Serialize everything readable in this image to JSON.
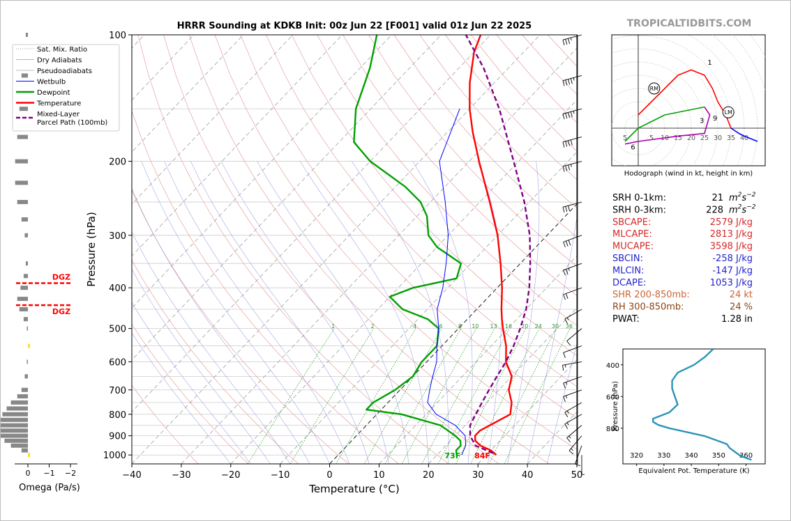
{
  "chart_data": {
    "type": "line",
    "title": "HRRR Sounding at KDKB Init: 00z Jun 22 [F001] valid 01z Jun 22 2025",
    "watermark": "TROPICALTIDBITS.COM",
    "xlabel": "Temperature (°C)",
    "ylabel": "Pressure (hPa)",
    "xlim": [
      -40,
      50
    ],
    "ylim": [
      1050,
      100
    ],
    "y_scale": "log",
    "grid": true,
    "x_ticks": [
      -40,
      -30,
      -20,
      -10,
      0,
      10,
      20,
      30,
      40,
      50
    ],
    "x_tick_labels": [
      "−40",
      "−30",
      "−20",
      "−10",
      "0",
      "10",
      "20",
      "30",
      "40",
      "50"
    ],
    "y_ticks": [
      100,
      200,
      300,
      400,
      500,
      600,
      700,
      800,
      900,
      1000
    ],
    "y_tick_labels": [
      "100",
      "200",
      "300",
      "400",
      "500",
      "600",
      "700",
      "800",
      "900",
      "1000"
    ],
    "legend_position": "top-left",
    "legend": [
      {
        "label": "Sat. Mix. Ratio",
        "color": "#777777",
        "style": "dotted"
      },
      {
        "label": "Dry Adiabats",
        "color": "#e08080",
        "style": "solid"
      },
      {
        "label": "Pseudoadiabats",
        "color": "#aaaaaa",
        "style": "solid"
      },
      {
        "label": "Wetbulb",
        "color": "#0000ff",
        "style": "solid"
      },
      {
        "label": "Dewpoint",
        "color": "#00a000",
        "style": "solid"
      },
      {
        "label": "Temperature",
        "color": "#ff0000",
        "style": "solid"
      },
      {
        "label": "Mixed-Layer\nParcel Path (100mb)",
        "color": "#800080",
        "style": "dashed"
      }
    ],
    "series": [
      {
        "name": "Temperature",
        "color": "#ff0000",
        "points": [
          [
            1000,
            32
          ],
          [
            975,
            30
          ],
          [
            950,
            27
          ],
          [
            925,
            25
          ],
          [
            900,
            24
          ],
          [
            875,
            24
          ],
          [
            850,
            25
          ],
          [
            800,
            27
          ],
          [
            750,
            25
          ],
          [
            700,
            22
          ],
          [
            650,
            20
          ],
          [
            600,
            16
          ],
          [
            550,
            13
          ],
          [
            500,
            9
          ],
          [
            475,
            7
          ],
          [
            450,
            5
          ],
          [
            400,
            1
          ],
          [
            350,
            -4
          ],
          [
            300,
            -10
          ],
          [
            250,
            -18
          ],
          [
            200,
            -28
          ],
          [
            170,
            -35
          ],
          [
            150,
            -40
          ],
          [
            130,
            -45
          ],
          [
            110,
            -50
          ],
          [
            100,
            -52
          ]
        ]
      },
      {
        "name": "Dewpoint",
        "color": "#00a000",
        "points": [
          [
            1000,
            24
          ],
          [
            975,
            23
          ],
          [
            950,
            23
          ],
          [
            925,
            22
          ],
          [
            900,
            20
          ],
          [
            850,
            15
          ],
          [
            800,
            5
          ],
          [
            780,
            -3
          ],
          [
            750,
            -3
          ],
          [
            700,
            -1
          ],
          [
            650,
            0
          ],
          [
            600,
            -1
          ],
          [
            550,
            -1
          ],
          [
            500,
            -4
          ],
          [
            475,
            -8
          ],
          [
            450,
            -15
          ],
          [
            420,
            -20
          ],
          [
            400,
            -17
          ],
          [
            380,
            -10
          ],
          [
            350,
            -12
          ],
          [
            320,
            -20
          ],
          [
            300,
            -24
          ],
          [
            270,
            -28
          ],
          [
            250,
            -32
          ],
          [
            230,
            -38
          ],
          [
            200,
            -50
          ],
          [
            180,
            -57
          ],
          [
            150,
            -63
          ],
          [
            120,
            -68
          ],
          [
            100,
            -73
          ]
        ]
      },
      {
        "name": "Wetbulb",
        "color": "#0000ff",
        "points": [
          [
            1000,
            25
          ],
          [
            950,
            24
          ],
          [
            900,
            22
          ],
          [
            850,
            18
          ],
          [
            800,
            12
          ],
          [
            750,
            8
          ],
          [
            700,
            6
          ],
          [
            650,
            4
          ],
          [
            600,
            2
          ],
          [
            550,
            -1
          ],
          [
            500,
            -4
          ],
          [
            450,
            -8
          ],
          [
            400,
            -11
          ],
          [
            350,
            -15
          ],
          [
            300,
            -20
          ],
          [
            250,
            -27
          ],
          [
            200,
            -36
          ],
          [
            150,
            -42
          ]
        ]
      },
      {
        "name": "Mixed-Layer Parcel Path (100mb)",
        "color": "#800080",
        "dash": true,
        "points": [
          [
            990,
            31
          ],
          [
            950,
            26
          ],
          [
            900,
            23
          ],
          [
            850,
            21
          ],
          [
            800,
            20
          ],
          [
            750,
            19
          ],
          [
            700,
            18
          ],
          [
            650,
            17
          ],
          [
            600,
            16
          ],
          [
            550,
            14.5
          ],
          [
            500,
            12.5
          ],
          [
            450,
            10
          ],
          [
            400,
            6.5
          ],
          [
            350,
            2
          ],
          [
            300,
            -3.5
          ],
          [
            250,
            -11
          ],
          [
            200,
            -21
          ],
          [
            150,
            -34
          ],
          [
            120,
            -45
          ],
          [
            100,
            -55
          ]
        ]
      }
    ],
    "surface_labels": [
      {
        "text": "73F",
        "color": "#00a000"
      },
      {
        "text": "84F",
        "color": "#ff0000"
      }
    ],
    "mixing_ratio_labels": [
      "1",
      "2",
      "4",
      "6",
      "8",
      "10",
      "13",
      "16",
      "20",
      "24",
      "30",
      "36"
    ],
    "wind_profile": [
      [
        1000,
        180,
        5
      ],
      [
        950,
        200,
        10
      ],
      [
        900,
        220,
        15
      ],
      [
        850,
        230,
        15
      ],
      [
        800,
        240,
        15
      ],
      [
        750,
        240,
        15
      ],
      [
        700,
        250,
        15
      ],
      [
        650,
        250,
        15
      ],
      [
        600,
        260,
        15
      ],
      [
        550,
        250,
        10
      ],
      [
        500,
        230,
        10
      ],
      [
        450,
        240,
        15
      ],
      [
        400,
        250,
        20
      ],
      [
        350,
        250,
        25
      ],
      [
        300,
        250,
        30
      ],
      [
        250,
        255,
        30
      ],
      [
        200,
        255,
        35
      ],
      [
        175,
        255,
        40
      ],
      [
        150,
        255,
        45
      ],
      [
        125,
        255,
        45
      ],
      [
        100,
        255,
        35
      ]
    ],
    "omega": {
      "xlabel": "Omega (Pa/s)",
      "x_ticks": [
        0,
        -1,
        -2
      ],
      "x_tick_labels": [
        "0",
        "−1",
        "−2"
      ],
      "dgz_label": "DGZ",
      "dgz_pressures": [
        390,
        440
      ],
      "profile": [
        [
          1000,
          -0.1
        ],
        [
          975,
          0.3
        ],
        [
          950,
          0.8
        ],
        [
          925,
          1.1
        ],
        [
          900,
          1.4
        ],
        [
          875,
          1.5
        ],
        [
          850,
          1.5
        ],
        [
          825,
          1.4
        ],
        [
          800,
          1.2
        ],
        [
          775,
          1.0
        ],
        [
          750,
          0.8
        ],
        [
          725,
          0.5
        ],
        [
          700,
          0.3
        ],
        [
          650,
          0.15
        ],
        [
          600,
          0.05
        ],
        [
          550,
          -0.1
        ],
        [
          500,
          0.05
        ],
        [
          475,
          0.2
        ],
        [
          450,
          0.4
        ],
        [
          425,
          0.5
        ],
        [
          400,
          0.35
        ],
        [
          375,
          0.2
        ],
        [
          350,
          0.1
        ],
        [
          300,
          0.15
        ],
        [
          275,
          0.3
        ],
        [
          250,
          0.5
        ],
        [
          225,
          0.6
        ],
        [
          200,
          0.6
        ],
        [
          175,
          0.5
        ],
        [
          150,
          0.4
        ],
        [
          125,
          0.3
        ],
        [
          100,
          0.1
        ]
      ]
    },
    "hodograph": {
      "xlabel": "Hodograph (wind in kt, height in km)",
      "ring_labels": [
        "5",
        "5",
        "10",
        "15",
        "20",
        "25",
        "30",
        "35",
        "40"
      ],
      "height_labels": [
        "1",
        "2",
        "3",
        "6",
        "9"
      ],
      "storm_markers": [
        "RM",
        "LM"
      ],
      "segments": [
        {
          "color": "#0000ff",
          "points": [
            [
              45,
              -5
            ],
            [
              40,
              -3
            ],
            [
              38,
              -2
            ],
            [
              35,
              0
            ]
          ]
        },
        {
          "color": "#ff0000",
          "points": [
            [
              35,
              0
            ],
            [
              33,
              5
            ],
            [
              30,
              10
            ],
            [
              28,
              15
            ],
            [
              25,
              20
            ],
            [
              20,
              22
            ],
            [
              15,
              20
            ],
            [
              10,
              15
            ],
            [
              5,
              10
            ],
            [
              0,
              5
            ]
          ]
        },
        {
          "color": "#00a000",
          "points": [
            [
              -5,
              -5
            ],
            [
              0,
              0
            ],
            [
              10,
              5
            ],
            [
              20,
              7
            ],
            [
              25,
              8
            ]
          ]
        },
        {
          "color": "#aa00aa",
          "points": [
            [
              25,
              8
            ],
            [
              27,
              5
            ],
            [
              25,
              -2
            ],
            [
              15,
              -3
            ],
            [
              0,
              -5
            ],
            [
              -5,
              -6
            ]
          ]
        }
      ]
    },
    "thetae": {
      "xlabel": "Equivalent Pot. Temperature (K)",
      "ylabel": "Pressure (hPa)",
      "x_ticks": [
        320,
        330,
        340,
        350,
        360
      ],
      "y_ticks": [
        400,
        600,
        800
      ],
      "y_tick_labels": [
        "400",
        "600",
        "800"
      ],
      "profile": [
        [
          1000,
          362
        ],
        [
          975,
          358
        ],
        [
          950,
          356
        ],
        [
          925,
          354
        ],
        [
          900,
          353
        ],
        [
          850,
          345
        ],
        [
          800,
          332
        ],
        [
          780,
          328
        ],
        [
          760,
          326
        ],
        [
          740,
          326
        ],
        [
          700,
          332
        ],
        [
          650,
          335
        ],
        [
          600,
          334
        ],
        [
          550,
          333
        ],
        [
          500,
          333
        ],
        [
          450,
          335
        ],
        [
          400,
          341
        ],
        [
          350,
          345
        ],
        [
          300,
          348
        ]
      ]
    }
  },
  "indices": [
    {
      "label": "SRH 0-1km:",
      "value": "21",
      "unit_base": "m",
      "unit_sup1": "2",
      "unit_mid": "s",
      "unit_sup2": "−2",
      "color": "#000000"
    },
    {
      "label": "SRH 0-3km:",
      "value": "228",
      "unit_base": "m",
      "unit_sup1": "2",
      "unit_mid": "s",
      "unit_sup2": "−2",
      "color": "#000000"
    },
    {
      "label": "SBCAPE:",
      "value": "2579 J/kg",
      "color": "#d62728"
    },
    {
      "label": "MLCAPE:",
      "value": "2813 J/kg",
      "color": "#d62728"
    },
    {
      "label": "MUCAPE:",
      "value": "3598 J/kg",
      "color": "#d62728"
    },
    {
      "label": "SBCIN:",
      "value": "-258 J/kg",
      "color": "#2222cc"
    },
    {
      "label": "MLCIN:",
      "value": "-147 J/kg",
      "color": "#2222cc"
    },
    {
      "label": "DCAPE:",
      "value": "1053 J/kg",
      "color": "#2222cc"
    },
    {
      "label": "SHR 200-850mb:",
      "value": "24 kt",
      "color": "#cc6633"
    },
    {
      "label": "RH 300-850mb:",
      "value": "24 %",
      "color": "#8b4513"
    },
    {
      "label": "PWAT:",
      "value": "1.28 in",
      "color": "#000000"
    }
  ]
}
